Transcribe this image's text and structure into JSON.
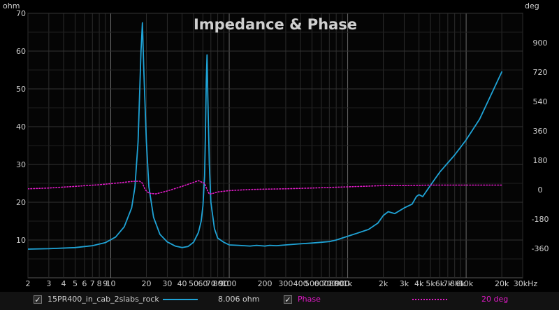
{
  "chart_data": {
    "type": "line",
    "title": "Impedance & Phase",
    "x_scale": "log",
    "xlim": [
      2,
      30000
    ],
    "x_ticks": [
      2,
      3,
      4,
      5,
      6,
      7,
      8,
      9,
      10,
      20,
      30,
      40,
      50,
      60,
      70,
      80,
      90,
      100,
      200,
      300,
      400,
      500,
      600,
      700,
      800,
      900,
      1000,
      2000,
      3000,
      4000,
      5000,
      6000,
      7000,
      8000,
      9000,
      10000,
      20000,
      30000
    ],
    "x_tick_labels": [
      "2",
      "3",
      "4",
      "5",
      "6",
      "7",
      "8",
      "9",
      "10",
      "20",
      "30",
      "40",
      "50",
      "60",
      "70",
      "80",
      "90",
      "100",
      "200",
      "300",
      "400",
      "500",
      "600",
      "700",
      "800",
      "900",
      "1k",
      "2k",
      "3k",
      "4k",
      "5k",
      "6k",
      "7k",
      "8k",
      "9k",
      "10k",
      "20k",
      "30kHz"
    ],
    "y_left": {
      "unit": "ohm",
      "ylim": [
        0,
        70
      ],
      "ticks": [
        10,
        20,
        30,
        40,
        50,
        60,
        70
      ],
      "tick_labels": [
        "10",
        "20",
        "30",
        "40",
        "50",
        "60",
        "70"
      ]
    },
    "y_right": {
      "unit": "deg",
      "ylim": [
        -540,
        1080
      ],
      "ticks": [
        -360,
        -180,
        0,
        180,
        360,
        540,
        720,
        900
      ],
      "tick_labels": [
        "-360",
        "-180",
        "0",
        "180",
        "360",
        "540",
        "720",
        "900"
      ]
    },
    "grid": true,
    "legend_position": "bottom",
    "series": [
      {
        "name": "15PR400_in_cab_2slabs_rock",
        "axis": "left",
        "color": "#1fa3d6",
        "style": "solid",
        "legend_value": "8.006 ohm",
        "x": [
          2,
          3,
          5,
          7,
          9,
          11,
          13,
          15,
          16,
          17,
          17.5,
          18,
          18.5,
          19,
          20,
          21,
          23,
          26,
          30,
          35,
          40,
          45,
          50,
          55,
          58,
          60,
          62,
          63,
          64,
          65,
          66,
          68,
          70,
          75,
          80,
          90,
          100,
          120,
          150,
          170,
          200,
          220,
          250,
          300,
          400,
          500,
          600,
          700,
          800,
          1000,
          1200,
          1500,
          1800,
          2000,
          2200,
          2500,
          3000,
          3500,
          3800,
          4000,
          4300,
          5000,
          6000,
          8000,
          10000,
          13000,
          16000,
          20000
        ],
        "y": [
          7.6,
          7.7,
          8.0,
          8.5,
          9.3,
          10.8,
          13.5,
          18.5,
          24,
          36,
          48,
          60,
          67.5,
          55,
          36,
          24,
          16,
          11.5,
          9.5,
          8.4,
          8.0,
          8.3,
          9.4,
          12,
          15,
          19,
          27,
          38,
          52,
          59,
          48,
          30,
          20,
          13,
          10.5,
          9.4,
          8.7,
          8.6,
          8.4,
          8.6,
          8.4,
          8.6,
          8.5,
          8.7,
          9.0,
          9.2,
          9.4,
          9.6,
          10.0,
          11.0,
          11.8,
          12.8,
          14.5,
          16.5,
          17.5,
          17.0,
          18.5,
          19.5,
          21.5,
          22.0,
          21.5,
          24.5,
          28.0,
          32.5,
          36.5,
          42.0,
          48.0,
          54.5
        ]
      },
      {
        "name": "Phase",
        "axis": "right",
        "color": "#e21ac8",
        "style": "dotted",
        "legend_value": "20 deg",
        "x": [
          2,
          3,
          5,
          8,
          12,
          15,
          17.5,
          18.5,
          19.5,
          21,
          24,
          30,
          40,
          55,
          62,
          65,
          68,
          72,
          80,
          100,
          150,
          200,
          300,
          500,
          1000,
          2000,
          3000,
          5000,
          10000,
          20000
        ],
        "y": [
          5,
          10,
          20,
          30,
          42,
          50,
          52,
          40,
          0,
          -22,
          -26,
          -8,
          20,
          55,
          38,
          0,
          -28,
          -24,
          -14,
          -6,
          1,
          3,
          5,
          10,
          17,
          25,
          25,
          28,
          28,
          28
        ]
      }
    ]
  }
}
